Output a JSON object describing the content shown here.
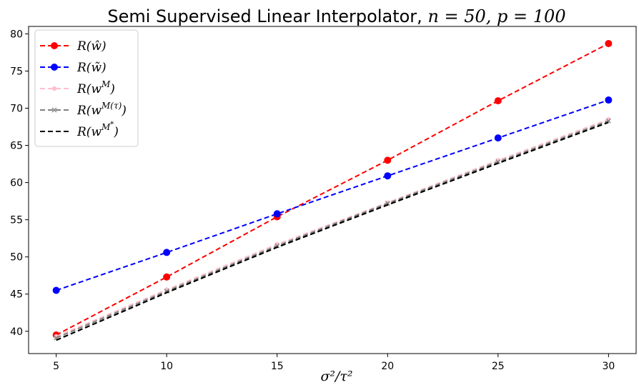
{
  "chart_data": {
    "type": "line",
    "title": "Semi Supervised Linear Interpolator, n = 50, p = 100",
    "xlabel": "σ²/τ²",
    "ylabel": "",
    "x": [
      5,
      10,
      15,
      20,
      25,
      30
    ],
    "xlim": [
      3.75,
      31.25
    ],
    "ylim": [
      37,
      81
    ],
    "xticks": [
      "5",
      "10",
      "15",
      "20",
      "25",
      "30"
    ],
    "yticks": [
      "40",
      "45",
      "50",
      "55",
      "60",
      "65",
      "70",
      "75",
      "80"
    ],
    "grid": false,
    "legend_position": "top-left",
    "series": [
      {
        "name": "R(ŵ)",
        "color": "#ff0000",
        "marker": "circle",
        "linestyle": "dashed",
        "values": [
          39.5,
          47.3,
          55.4,
          63.0,
          71.0,
          78.7
        ]
      },
      {
        "name": "R(w̃)",
        "color": "#0000ff",
        "marker": "circle",
        "linestyle": "dashed",
        "values": [
          45.5,
          50.6,
          55.8,
          60.9,
          66.0,
          71.1
        ]
      },
      {
        "name": "R(w^M)",
        "color": "#ffc0cb",
        "marker": "small-circle",
        "linestyle": "dashed",
        "values": [
          39.3,
          45.6,
          51.7,
          57.3,
          63.0,
          68.5
        ]
      },
      {
        "name": "R(w^M(τ))",
        "color": "#808080",
        "marker": "x",
        "linestyle": "dashed",
        "values": [
          39.1,
          45.4,
          51.5,
          57.2,
          62.8,
          68.3
        ]
      },
      {
        "name": "R(w^M*)",
        "color": "#000000",
        "marker": "none",
        "linestyle": "dashed",
        "values": [
          38.8,
          45.2,
          51.3,
          57.0,
          62.6,
          68.1
        ]
      }
    ]
  }
}
